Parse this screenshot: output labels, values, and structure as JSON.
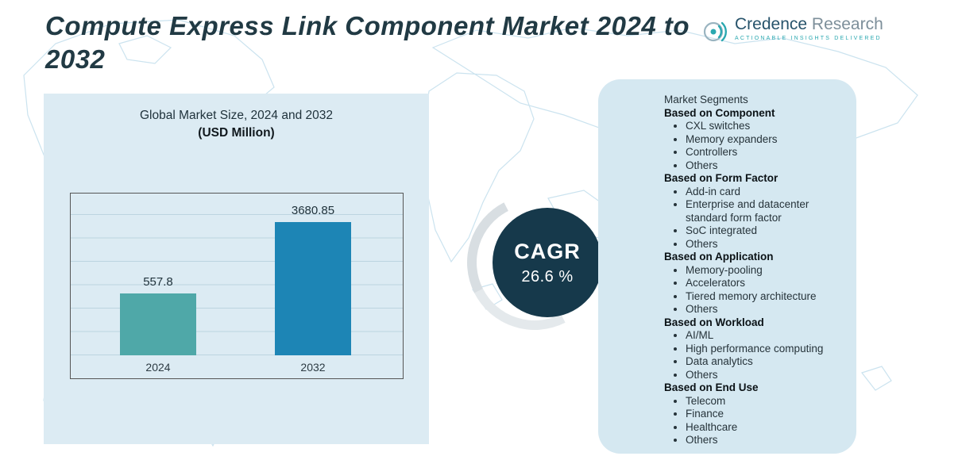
{
  "header": {
    "title": "Compute Express Link Component Market 2024 to 2032",
    "logo": {
      "brand_primary": "Credence",
      "brand_secondary": "Research",
      "tagline": "Actionable Insights Delivered"
    }
  },
  "chart_panel": {
    "title": "Global Market Size, 2024 and 2032",
    "subtitle": "(USD Million)"
  },
  "chart_data": {
    "type": "bar",
    "title": "Global Market Size, 2024 and 2032",
    "units": "USD Million",
    "categories": [
      "2024",
      "2032"
    ],
    "values": [
      557.8,
      3680.85
    ],
    "data_labels": [
      "557.8",
      "3680.85"
    ],
    "colors": [
      "#4FA8A8",
      "#1D85B5"
    ],
    "grid": true,
    "legend": false,
    "ylim": [
      0,
      4000
    ]
  },
  "cagr": {
    "label": "CAGR",
    "value": "26.6 %"
  },
  "segments": {
    "title": "Market Segments",
    "sections": [
      {
        "heading": "Based on Component",
        "items": [
          "CXL switches",
          "Memory expanders",
          "Controllers",
          "Others"
        ]
      },
      {
        "heading": "Based on Form Factor",
        "items": [
          "Add-in card",
          "Enterprise and datacenter standard form factor",
          "SoC integrated",
          "Others"
        ]
      },
      {
        "heading": "Based on Application",
        "items": [
          "Memory-pooling",
          "Accelerators",
          "Tiered memory architecture",
          "Others"
        ]
      },
      {
        "heading": "Based on Workload",
        "items": [
          "AI/ML",
          "High performance computing",
          "Data analytics",
          "Others"
        ]
      },
      {
        "heading": "Based on End Use",
        "items": [
          "Telecom",
          "Finance",
          "Healthcare",
          "Others"
        ]
      }
    ]
  }
}
